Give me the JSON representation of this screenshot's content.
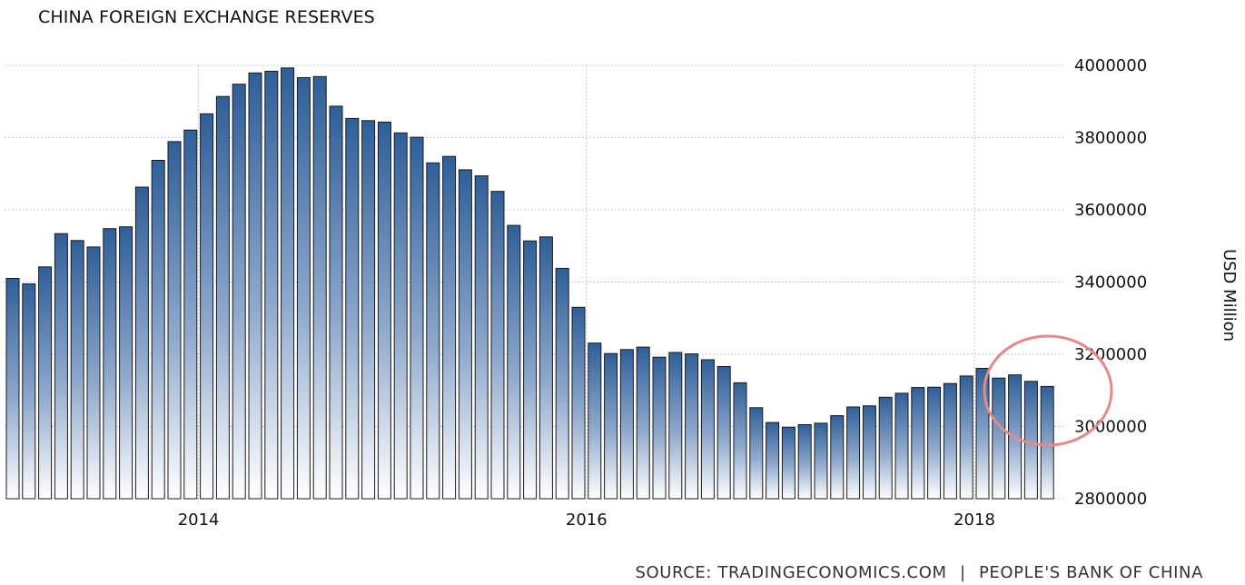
{
  "title": "CHINA FOREIGN EXCHANGE RESERVES",
  "source": {
    "prefix": "SOURCE:",
    "provider": "TRADINGECONOMICS.COM",
    "separator": "|",
    "origin": "PEOPLE'S BANK OF CHINA"
  },
  "colors": {
    "bar_top": "#2f5f99",
    "bar_bottom": "#ffffff",
    "bar_edge": "#1a1a1a",
    "grid": "#c8c8c8",
    "highlight_ellipse": "#e58a8a"
  },
  "chart_data": {
    "type": "bar",
    "title": "CHINA FOREIGN EXCHANGE RESERVES",
    "ylabel": "USD Million",
    "ylim": [
      2800000,
      4000000
    ],
    "yticks": [
      "2800000",
      "3000000",
      "3200000",
      "3400000",
      "3600000",
      "3800000",
      "4000000"
    ],
    "xticks": [
      "2014",
      "2016",
      "2018"
    ],
    "grid": true,
    "y_axis_position": "right",
    "annotation": "circle highlighting the most recent months",
    "categories": [
      "2013-01",
      "2013-02",
      "2013-03",
      "2013-04",
      "2013-05",
      "2013-06",
      "2013-07",
      "2013-08",
      "2013-09",
      "2013-10",
      "2013-11",
      "2013-12",
      "2014-01",
      "2014-02",
      "2014-03",
      "2014-04",
      "2014-05",
      "2014-06",
      "2014-07",
      "2014-08",
      "2014-09",
      "2014-10",
      "2014-11",
      "2014-12",
      "2015-01",
      "2015-02",
      "2015-03",
      "2015-04",
      "2015-05",
      "2015-06",
      "2015-07",
      "2015-08",
      "2015-09",
      "2015-10",
      "2015-11",
      "2015-12",
      "2016-01",
      "2016-02",
      "2016-03",
      "2016-04",
      "2016-05",
      "2016-06",
      "2016-07",
      "2016-08",
      "2016-09",
      "2016-10",
      "2016-11",
      "2016-12",
      "2017-01",
      "2017-02",
      "2017-03",
      "2017-04",
      "2017-05",
      "2017-06",
      "2017-07",
      "2017-08",
      "2017-09",
      "2017-10",
      "2017-11",
      "2017-12",
      "2018-01",
      "2018-02",
      "2018-03",
      "2018-04",
      "2018-05"
    ],
    "values": [
      3410000,
      3395000,
      3442000,
      3534000,
      3515000,
      3497000,
      3548000,
      3553000,
      3663000,
      3737000,
      3789000,
      3821000,
      3866000,
      3914000,
      3948000,
      3979000,
      3984000,
      3993000,
      3966000,
      3969000,
      3887000,
      3853000,
      3847000,
      3843000,
      3813000,
      3801000,
      3730000,
      3748000,
      3711000,
      3694000,
      3651000,
      3557000,
      3514000,
      3525000,
      3438000,
      3330000,
      3231000,
      3202000,
      3213000,
      3220000,
      3192000,
      3205000,
      3201000,
      3185000,
      3166000,
      3121000,
      3052000,
      3011000,
      2998000,
      3005000,
      3009000,
      3030000,
      3054000,
      3057000,
      3081000,
      3092000,
      3108000,
      3109000,
      3119000,
      3140000,
      3161000,
      3134000,
      3143000,
      3125000,
      3111000
    ]
  }
}
